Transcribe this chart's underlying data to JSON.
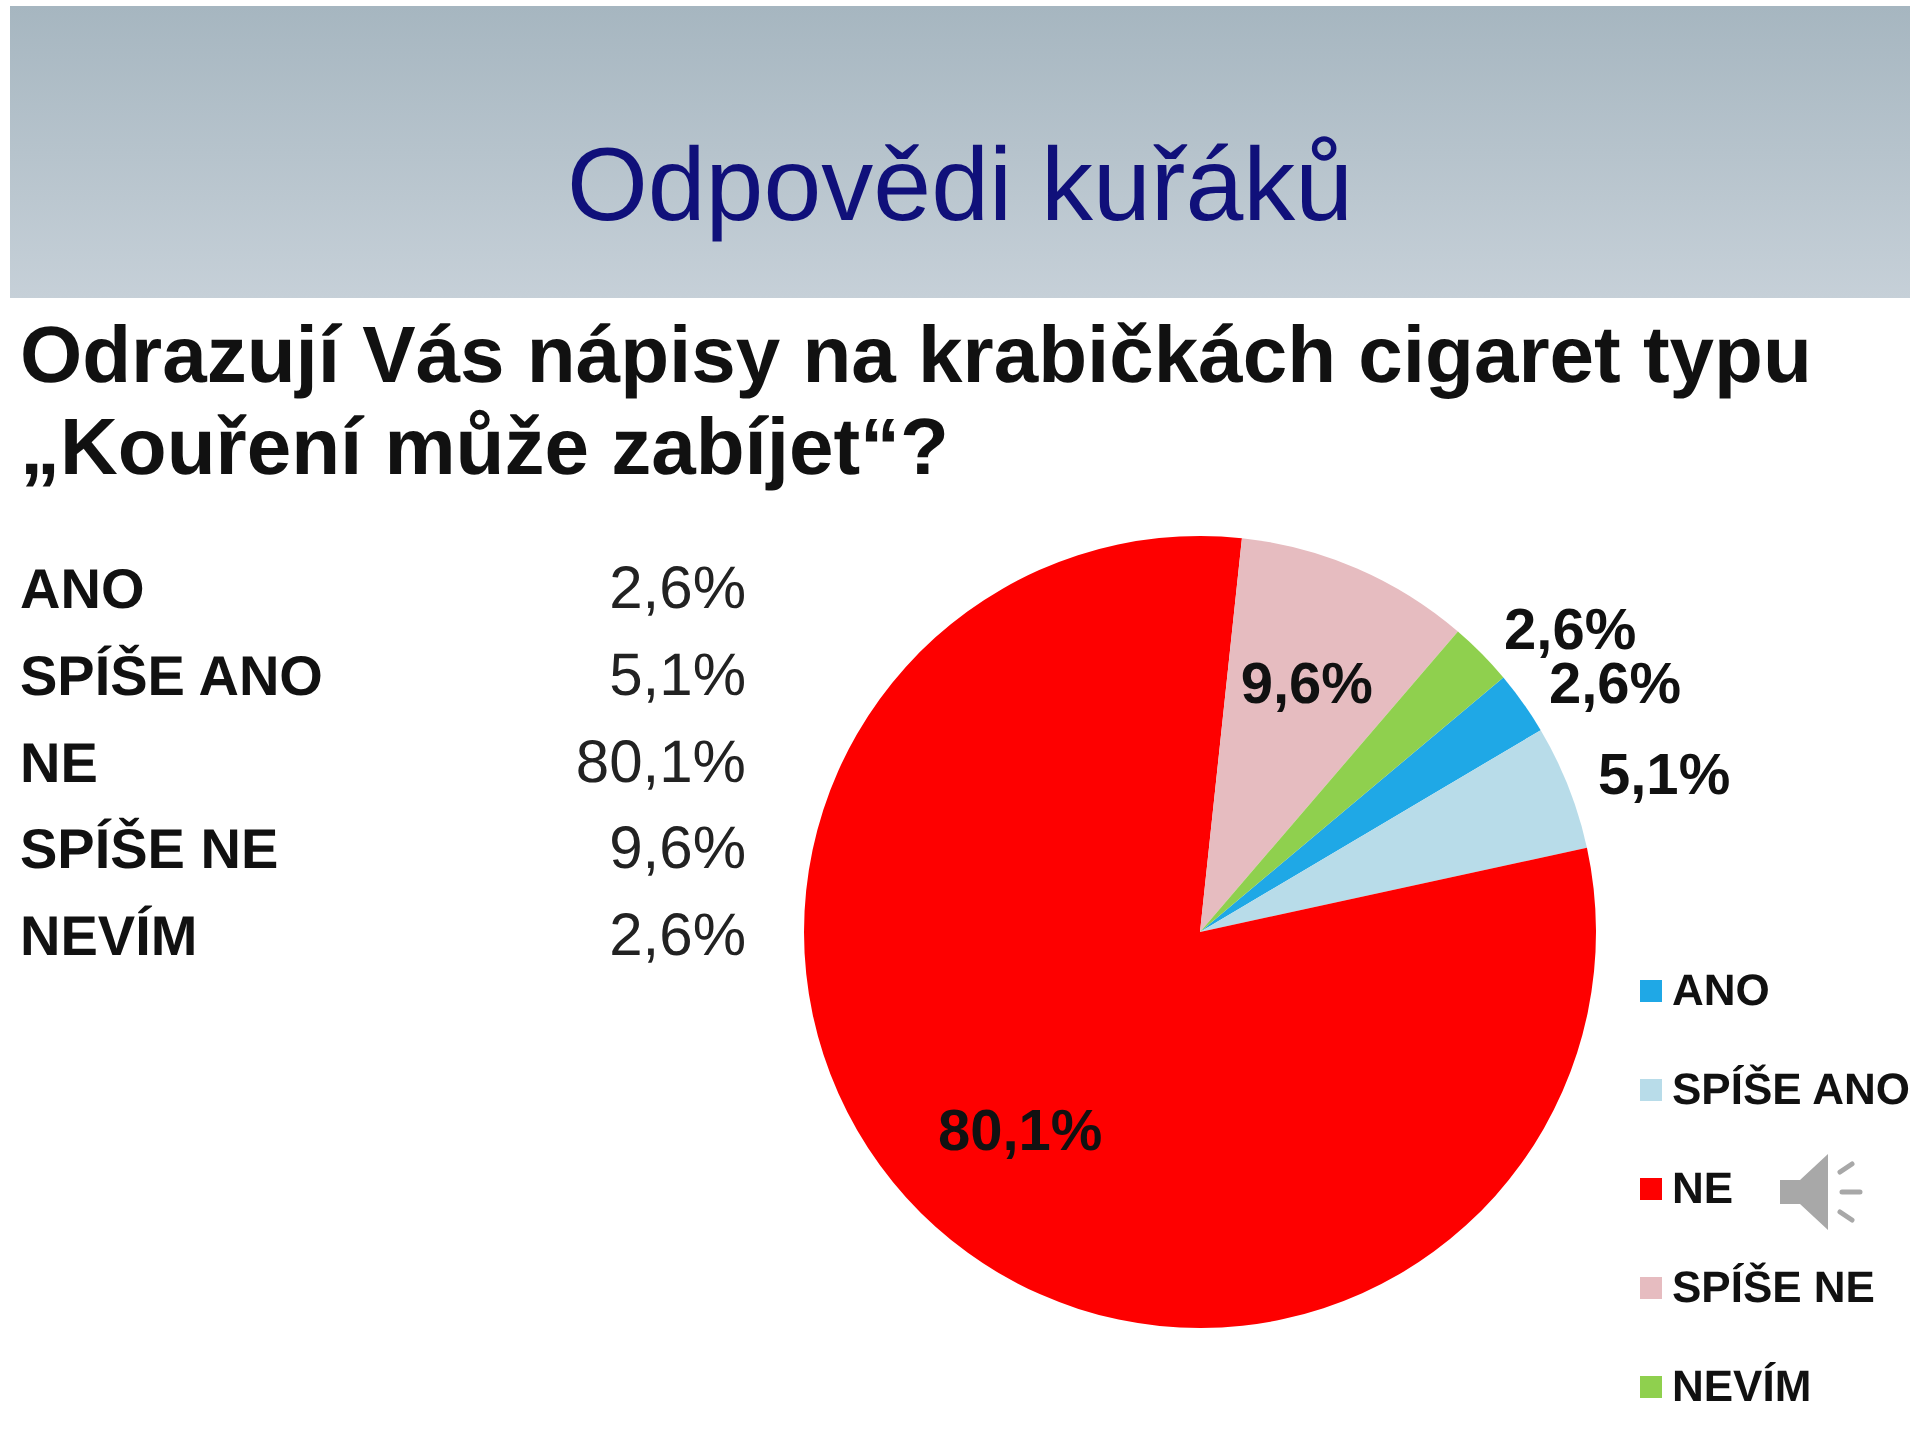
{
  "chart_data": {
    "type": "pie",
    "title": "Odpovědi kuřáků",
    "subtitle": "Odrazují Vás nápisy na krabičkách cigaret typu „Kouření může zabíjet“?",
    "categories": [
      "ANO",
      "SPÍŠE ANO",
      "NE",
      "SPÍŠE NE",
      "NEVÍM"
    ],
    "values": [
      2.6,
      5.1,
      80.1,
      9.6,
      2.6
    ],
    "colors": [
      "#1fa8e6",
      "#b8dce9",
      "#fe0000",
      "#e6bcc0",
      "#8fd04e"
    ],
    "value_labels": [
      "2,6%",
      "5,1%",
      "80,1%",
      "9,6%",
      "2,6%"
    ],
    "legend": "bottom right"
  }
}
